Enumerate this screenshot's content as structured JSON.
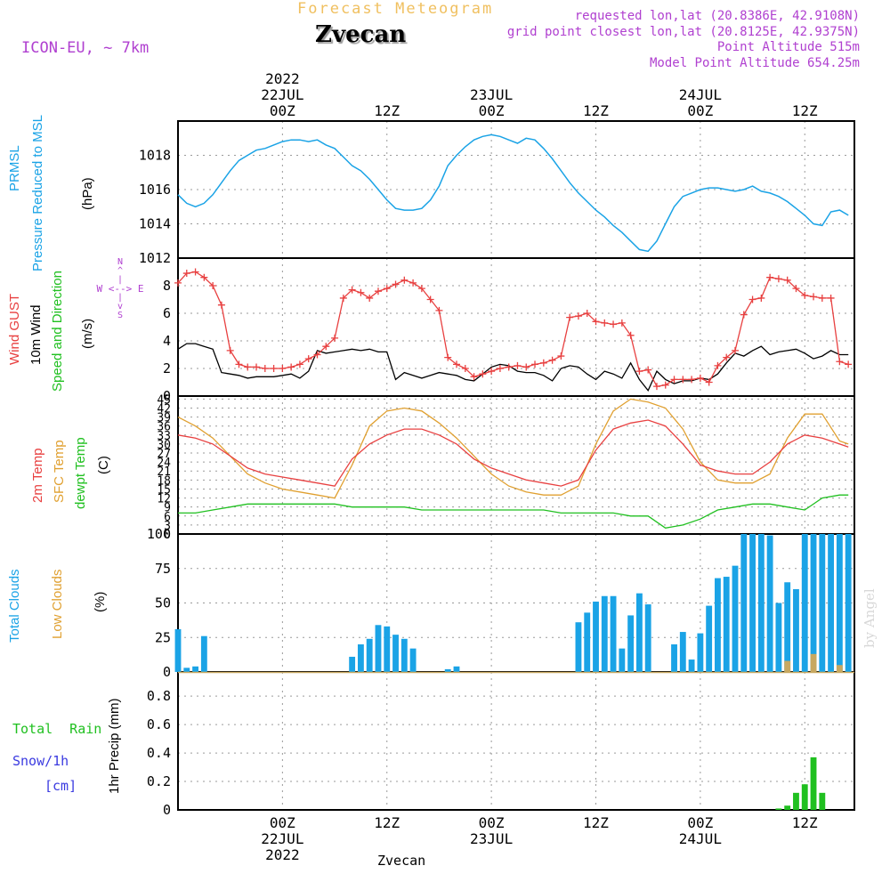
{
  "header": {
    "product": "Forecast Meteogram",
    "location": "Zvecan",
    "model": "ICON-EU, ~ 7km",
    "requested": "requested lon,lat (20.8386E, 42.9108N)",
    "gridpoint": "grid point closest lon,lat (20.8125E, 42.9375N)",
    "point_alt": "Point Altitude 515m",
    "model_alt": "Model Point Altitude 654.25m",
    "credit": "by Angel"
  },
  "time_axis": {
    "top_labels": [
      {
        "lines": [
          "2022",
          "22JUL",
          "00Z"
        ],
        "hour": 24
      },
      {
        "lines": [
          "12Z"
        ],
        "hour": 36
      },
      {
        "lines": [
          "23JUL",
          "00Z"
        ],
        "hour": 48
      },
      {
        "lines": [
          "12Z"
        ],
        "hour": 60
      },
      {
        "lines": [
          "24JUL",
          "00Z"
        ],
        "hour": 72
      },
      {
        "lines": [
          "12Z"
        ],
        "hour": 84
      }
    ],
    "bottom_labels": [
      {
        "lines": [
          "00Z",
          "22JUL",
          "2022"
        ],
        "hour": 24
      },
      {
        "lines": [
          "12Z"
        ],
        "hour": 36
      },
      {
        "lines": [
          "00Z",
          "23JUL"
        ],
        "hour": 48
      },
      {
        "lines": [
          "12Z"
        ],
        "hour": 60
      },
      {
        "lines": [
          "00Z",
          "24JUL"
        ],
        "hour": 72
      },
      {
        "lines": [
          "12Z"
        ],
        "hour": 84
      }
    ],
    "bottom_name": "Zvecan"
  },
  "panel_labels": {
    "pressure": {
      "title1": "PRMSL",
      "title2": "Pressure Reduced to MSL",
      "unit": "(hPa)"
    },
    "wind": {
      "gust": "Wind GUST",
      "wind10": "10m Wind",
      "dir": "Speed and Direction",
      "unit": "(m/s)",
      "compass": [
        "N",
        "^",
        "|",
        "W <--> E",
        "|",
        "v",
        "S"
      ]
    },
    "temp": {
      "t2m": "2m Temp",
      "sfc": "SFC Temp",
      "dew": "dewpt Temp",
      "unit": "(C)"
    },
    "clouds": {
      "total": "Total Clouds",
      "low": "Low Clouds",
      "unit": "(%)"
    },
    "precip": {
      "rain": "Total Rain",
      "snow": "Snow/1h",
      "snow_unit": "[cm]",
      "unit": "1hr Precip (mm)"
    }
  },
  "colors": {
    "pressure": "#1aa3e6",
    "gust": "#e84040",
    "wind10": "#000000",
    "t2m": "#e84040",
    "sfc": "#e0a030",
    "dew": "#20c020",
    "total_clouds": "#1aa3e6",
    "low_clouds": "#c8a860",
    "rain": "#20c020",
    "snow": "#3a3ae0",
    "meta": "#b040d0",
    "product": "#f0c060"
  },
  "chart_data": [
    {
      "type": "line",
      "name": "PRMSL",
      "ylim": [
        1012,
        1020
      ],
      "yticks": [
        1012,
        1014,
        1016,
        1018
      ],
      "x": [
        12,
        13,
        14,
        15,
        16,
        17,
        18,
        19,
        20,
        21,
        22,
        23,
        24,
        25,
        26,
        27,
        28,
        29,
        30,
        31,
        32,
        33,
        34,
        35,
        36,
        37,
        38,
        39,
        40,
        41,
        42,
        43,
        44,
        45,
        46,
        47,
        48,
        49,
        50,
        51,
        52,
        53,
        54,
        55,
        56,
        57,
        58,
        59,
        60,
        61,
        62,
        63,
        64,
        65,
        66,
        67,
        68,
        69,
        70,
        71,
        72,
        73,
        74,
        75,
        76,
        77,
        78,
        79,
        80,
        81,
        82,
        83,
        84,
        85,
        86,
        87,
        88,
        89
      ],
      "y": [
        1015.7,
        1015.2,
        1015.0,
        1015.2,
        1015.7,
        1016.4,
        1017.1,
        1017.7,
        1018.0,
        1018.3,
        1018.4,
        1018.6,
        1018.8,
        1018.9,
        1018.9,
        1018.8,
        1018.9,
        1018.6,
        1018.4,
        1017.9,
        1017.4,
        1017.1,
        1016.6,
        1016.0,
        1015.4,
        1014.9,
        1014.8,
        1014.8,
        1014.9,
        1015.4,
        1016.2,
        1017.4,
        1018.0,
        1018.5,
        1018.9,
        1019.1,
        1019.2,
        1019.1,
        1018.9,
        1018.7,
        1019.0,
        1018.9,
        1018.4,
        1017.8,
        1017.1,
        1016.4,
        1015.8,
        1015.3,
        1014.8,
        1014.4,
        1013.9,
        1013.5,
        1013.0,
        1012.5,
        1012.4,
        1013.0,
        1014.0,
        1015.0,
        1015.6,
        1015.8,
        1016.0,
        1016.1,
        1016.1,
        1016.0,
        1015.9,
        1016.0,
        1016.2,
        1015.9,
        1015.8,
        1015.6,
        1015.3,
        1014.9,
        1014.5,
        1014.0,
        1013.9,
        1014.7,
        1014.8,
        1014.5
      ]
    },
    {
      "type": "line",
      "name": "Wind GUST / 10m Wind",
      "ylim": [
        0,
        10
      ],
      "yticks": [
        0,
        2,
        4,
        6,
        8
      ],
      "x": [
        12,
        13,
        14,
        15,
        16,
        17,
        18,
        19,
        20,
        21,
        22,
        23,
        24,
        25,
        26,
        27,
        28,
        29,
        30,
        31,
        32,
        33,
        34,
        35,
        36,
        37,
        38,
        39,
        40,
        41,
        42,
        43,
        44,
        45,
        46,
        47,
        48,
        49,
        50,
        51,
        52,
        53,
        54,
        55,
        56,
        57,
        58,
        59,
        60,
        61,
        62,
        63,
        64,
        65,
        66,
        67,
        68,
        69,
        70,
        71,
        72,
        73,
        74,
        75,
        76,
        77,
        78,
        79,
        80,
        81,
        82,
        83,
        84,
        85,
        86,
        87,
        88,
        89
      ],
      "gust": [
        8.2,
        8.9,
        9.0,
        8.6,
        8.0,
        6.6,
        3.3,
        2.3,
        2.1,
        2.1,
        2.0,
        2.0,
        2.0,
        2.1,
        2.3,
        2.7,
        3.0,
        3.6,
        4.2,
        7.1,
        7.7,
        7.5,
        7.1,
        7.6,
        7.8,
        8.1,
        8.4,
        8.2,
        7.8,
        7.0,
        6.2,
        2.8,
        2.3,
        2.0,
        1.4,
        1.6,
        1.8,
        2.0,
        2.1,
        2.2,
        2.1,
        2.3,
        2.4,
        2.6,
        2.9,
        5.7,
        5.8,
        6.0,
        5.4,
        5.3,
        5.2,
        5.3,
        4.4,
        1.8,
        1.9,
        0.7,
        0.8,
        1.2,
        1.2,
        1.2,
        1.3,
        1.0,
        2.2,
        2.8,
        3.3,
        5.9,
        7.0,
        7.1,
        8.6,
        8.5,
        8.4,
        7.8,
        7.3,
        7.2,
        7.1,
        7.1,
        2.5,
        2.3
      ],
      "wind10": [
        3.4,
        3.8,
        3.8,
        3.6,
        3.4,
        1.7,
        1.6,
        1.5,
        1.3,
        1.4,
        1.4,
        1.4,
        1.5,
        1.6,
        1.3,
        1.8,
        3.3,
        3.1,
        3.2,
        3.3,
        3.4,
        3.3,
        3.4,
        3.2,
        3.2,
        1.2,
        1.7,
        1.5,
        1.3,
        1.5,
        1.7,
        1.6,
        1.5,
        1.2,
        1.1,
        1.6,
        2.1,
        2.3,
        2.2,
        1.8,
        1.7,
        1.7,
        1.5,
        1.1,
        2.0,
        2.2,
        2.1,
        1.6,
        1.2,
        1.8,
        1.6,
        1.3,
        2.4,
        1.2,
        0.4,
        1.8,
        1.2,
        0.9,
        1.1,
        1.1,
        1.3,
        1.2,
        1.6,
        2.4,
        3.1,
        2.9,
        3.3,
        3.6,
        3.0,
        3.2,
        3.3,
        3.4,
        3.1,
        2.7,
        2.9,
        3.3,
        3.0,
        3.0
      ]
    },
    {
      "type": "line",
      "name": "Temperatures",
      "ylim": [
        0,
        46
      ],
      "yticks": [
        0,
        3,
        6,
        9,
        12,
        15,
        18,
        21,
        24,
        27,
        30,
        33,
        36,
        39,
        42,
        45
      ],
      "x": [
        12,
        14,
        16,
        18,
        20,
        22,
        24,
        26,
        28,
        30,
        32,
        34,
        36,
        38,
        40,
        42,
        44,
        46,
        48,
        50,
        52,
        54,
        56,
        58,
        60,
        62,
        64,
        66,
        68,
        70,
        72,
        74,
        76,
        78,
        80,
        82,
        84,
        86,
        88,
        89
      ],
      "t2m": [
        33,
        32,
        30,
        26,
        22,
        20,
        19,
        18,
        17,
        16,
        25,
        30,
        33,
        35,
        35,
        33,
        30,
        25,
        22,
        20,
        18,
        17,
        16,
        18,
        28,
        35,
        37,
        38,
        36,
        30,
        23,
        21,
        20,
        20,
        24,
        30,
        33,
        32,
        30,
        29
      ],
      "sfc": [
        39,
        36,
        32,
        26,
        20,
        17,
        15,
        14,
        13,
        12,
        23,
        36,
        41,
        42,
        41,
        37,
        32,
        26,
        20,
        16,
        14,
        13,
        13,
        16,
        30,
        41,
        45,
        44,
        42,
        35,
        24,
        18,
        17,
        17,
        20,
        32,
        40,
        40,
        31,
        30
      ],
      "dew": [
        7,
        7,
        8,
        9,
        10,
        10,
        10,
        10,
        10,
        10,
        9,
        9,
        9,
        9,
        8,
        8,
        8,
        8,
        8,
        8,
        8,
        8,
        7,
        7,
        7,
        7,
        6,
        6,
        2,
        3,
        5,
        8,
        9,
        10,
        10,
        9,
        8,
        12,
        13,
        13
      ]
    },
    {
      "type": "bar",
      "name": "Clouds",
      "ylim": [
        0,
        100
      ],
      "yticks": [
        0,
        25,
        50,
        75,
        100
      ],
      "x": [
        12,
        13,
        14,
        15,
        16,
        17,
        18,
        19,
        20,
        21,
        22,
        23,
        24,
        25,
        26,
        27,
        28,
        29,
        30,
        31,
        32,
        33,
        34,
        35,
        36,
        37,
        38,
        39,
        40,
        41,
        42,
        43,
        44,
        45,
        46,
        47,
        48,
        49,
        50,
        51,
        52,
        53,
        54,
        55,
        56,
        57,
        58,
        59,
        60,
        61,
        62,
        63,
        64,
        65,
        66,
        67,
        68,
        69,
        70,
        71,
        72,
        73,
        74,
        75,
        76,
        77,
        78,
        79,
        80,
        81,
        82,
        83,
        84,
        85,
        86,
        87,
        88,
        89
      ],
      "total": [
        31,
        3,
        4,
        26,
        0,
        0,
        0,
        0,
        0,
        0,
        0,
        0,
        0,
        0,
        0,
        0,
        0,
        0,
        0,
        0,
        11,
        20,
        24,
        34,
        33,
        27,
        24,
        17,
        0,
        0,
        0,
        2,
        4,
        0,
        0,
        0,
        0,
        0,
        0,
        0,
        0,
        0,
        0,
        0,
        0,
        0,
        36,
        43,
        51,
        55,
        55,
        17,
        41,
        57,
        49,
        0,
        0,
        20,
        29,
        9,
        28,
        48,
        68,
        69,
        77,
        100,
        100,
        100,
        99,
        50,
        65,
        60,
        100,
        100,
        100,
        100,
        100,
        100
      ],
      "low": [
        0,
        0,
        0,
        0,
        0,
        0,
        0,
        0,
        0,
        0,
        0,
        0,
        0,
        0,
        0,
        0,
        0,
        0,
        0,
        0,
        0,
        0,
        0,
        0,
        0,
        0,
        0,
        0,
        0,
        0,
        0,
        0,
        0,
        0,
        0,
        0,
        0,
        0,
        0,
        0,
        0,
        0,
        0,
        0,
        0,
        0,
        0,
        0,
        0,
        0,
        0,
        0,
        0,
        0,
        0,
        0,
        0,
        0,
        0,
        0,
        0,
        0,
        0,
        0,
        0,
        0,
        0,
        0,
        0,
        0,
        8,
        0,
        0,
        13,
        0,
        0,
        5,
        0
      ]
    },
    {
      "type": "bar",
      "name": "1hr Precip",
      "ylim": [
        0,
        0.97
      ],
      "yticks": [
        0,
        0.2,
        0.4,
        0.6,
        0.8
      ],
      "x": [
        81,
        82,
        83,
        84,
        85,
        86
      ],
      "rain": [
        0.01,
        0.03,
        0.12,
        0.18,
        0.37,
        0.12
      ]
    }
  ]
}
